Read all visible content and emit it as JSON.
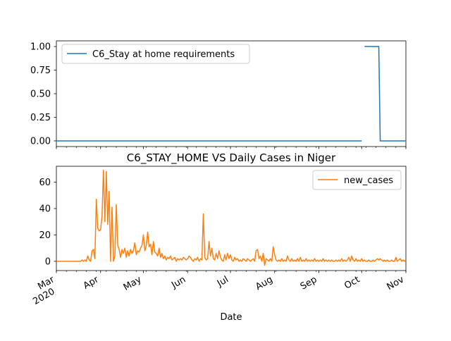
{
  "chart_data": [
    {
      "type": "line",
      "title": "",
      "xlabel": "",
      "ylabel": "",
      "x_range": [
        "2020-03-01",
        "2020-11-01"
      ],
      "ylim": [
        -0.06,
        1.06
      ],
      "yticks": [
        0.0,
        0.25,
        0.5,
        0.75,
        1.0
      ],
      "ytick_labels": [
        "0.00",
        "0.25",
        "0.50",
        "0.75",
        "1.00"
      ],
      "grid": false,
      "legend": "top-left",
      "series": [
        {
          "name": "C6_Stay at home requirements",
          "color": "#1f77b4",
          "segments": [
            [
              [
                "2020-03-01",
                0
              ],
              [
                "2020-10-01",
                0
              ]
            ],
            [
              [
                "2020-10-03",
                1
              ],
              [
                "2020-10-13",
                1
              ],
              [
                "2020-10-14",
                0
              ],
              [
                "2020-11-01",
                0
              ]
            ]
          ]
        }
      ]
    },
    {
      "type": "line",
      "title": "C6_STAY_HOME VS Daily Cases in Niger",
      "xlabel": "Date",
      "ylabel": "",
      "x_range": [
        "2020-03-01",
        "2020-11-01"
      ],
      "ylim": [
        -7,
        72
      ],
      "yticks": [
        0,
        20,
        40,
        60
      ],
      "ytick_labels": [
        "0",
        "20",
        "40",
        "60"
      ],
      "xticks": [
        {
          "date": "2020-03-01",
          "label": "Mar",
          "sublabel": "2020"
        },
        {
          "date": "2020-04-01",
          "label": "Apr"
        },
        {
          "date": "2020-05-01",
          "label": "May"
        },
        {
          "date": "2020-06-01",
          "label": "Jun"
        },
        {
          "date": "2020-07-01",
          "label": "Jul"
        },
        {
          "date": "2020-08-01",
          "label": "Aug"
        },
        {
          "date": "2020-09-01",
          "label": "Sep"
        },
        {
          "date": "2020-10-01",
          "label": "Oct"
        },
        {
          "date": "2020-11-01",
          "label": "Nov"
        }
      ],
      "grid": false,
      "legend": "top-right",
      "series": [
        {
          "name": "new_cases",
          "color": "#ff7f0e",
          "points": [
            [
              "2020-03-01",
              0
            ],
            [
              "2020-03-18",
              0
            ],
            [
              "2020-03-19",
              1
            ],
            [
              "2020-03-20",
              0
            ],
            [
              "2020-03-21",
              1
            ],
            [
              "2020-03-22",
              0
            ],
            [
              "2020-03-23",
              4
            ],
            [
              "2020-03-24",
              1
            ],
            [
              "2020-03-25",
              0
            ],
            [
              "2020-03-26",
              8
            ],
            [
              "2020-03-27",
              9
            ],
            [
              "2020-03-28",
              2
            ],
            [
              "2020-03-29",
              47
            ],
            [
              "2020-03-30",
              25
            ],
            [
              "2020-03-31",
              23
            ],
            [
              "2020-04-01",
              24
            ],
            [
              "2020-04-02",
              34
            ],
            [
              "2020-04-03",
              69
            ],
            [
              "2020-04-04",
              30
            ],
            [
              "2020-04-05",
              68
            ],
            [
              "2020-04-06",
              28
            ],
            [
              "2020-04-07",
              53
            ],
            [
              "2020-04-08",
              0
            ],
            [
              "2020-04-09",
              41
            ],
            [
              "2020-04-10",
              0
            ],
            [
              "2020-04-11",
              4
            ],
            [
              "2020-04-12",
              43
            ],
            [
              "2020-04-13",
              12
            ],
            [
              "2020-04-14",
              9
            ],
            [
              "2020-04-15",
              3
            ],
            [
              "2020-04-16",
              9
            ],
            [
              "2020-04-17",
              6
            ],
            [
              "2020-04-18",
              10
            ],
            [
              "2020-04-19",
              3
            ],
            [
              "2020-04-20",
              8
            ],
            [
              "2020-04-21",
              4
            ],
            [
              "2020-04-22",
              9
            ],
            [
              "2020-04-23",
              6
            ],
            [
              "2020-04-24",
              8
            ],
            [
              "2020-04-25",
              14
            ],
            [
              "2020-04-26",
              5
            ],
            [
              "2020-04-27",
              8
            ],
            [
              "2020-04-28",
              7
            ],
            [
              "2020-04-29",
              10
            ],
            [
              "2020-04-30",
              12
            ],
            [
              "2020-05-01",
              20
            ],
            [
              "2020-05-02",
              8
            ],
            [
              "2020-05-03",
              12
            ],
            [
              "2020-05-04",
              22
            ],
            [
              "2020-05-05",
              11
            ],
            [
              "2020-05-06",
              13
            ],
            [
              "2020-05-07",
              5
            ],
            [
              "2020-05-08",
              15
            ],
            [
              "2020-05-09",
              7
            ],
            [
              "2020-05-10",
              6
            ],
            [
              "2020-05-11",
              4
            ],
            [
              "2020-05-12",
              10
            ],
            [
              "2020-05-13",
              3
            ],
            [
              "2020-05-14",
              6
            ],
            [
              "2020-05-15",
              2
            ],
            [
              "2020-05-16",
              4
            ],
            [
              "2020-05-17",
              1
            ],
            [
              "2020-05-18",
              3
            ],
            [
              "2020-05-19",
              2
            ],
            [
              "2020-05-20",
              4
            ],
            [
              "2020-05-21",
              1
            ],
            [
              "2020-05-22",
              2
            ],
            [
              "2020-05-23",
              3
            ],
            [
              "2020-05-24",
              0
            ],
            [
              "2020-05-25",
              2
            ],
            [
              "2020-05-26",
              1
            ],
            [
              "2020-05-27",
              2
            ],
            [
              "2020-05-28",
              1
            ],
            [
              "2020-05-29",
              3
            ],
            [
              "2020-05-30",
              2
            ],
            [
              "2020-05-31",
              1
            ],
            [
              "2020-06-01",
              2
            ],
            [
              "2020-06-02",
              4
            ],
            [
              "2020-06-03",
              3
            ],
            [
              "2020-06-04",
              1
            ],
            [
              "2020-06-05",
              0
            ],
            [
              "2020-06-06",
              2
            ],
            [
              "2020-06-07",
              1
            ],
            [
              "2020-06-08",
              3
            ],
            [
              "2020-06-09",
              0
            ],
            [
              "2020-06-10",
              2
            ],
            [
              "2020-06-11",
              1
            ],
            [
              "2020-06-12",
              36
            ],
            [
              "2020-06-13",
              3
            ],
            [
              "2020-06-14",
              1
            ],
            [
              "2020-06-15",
              2
            ],
            [
              "2020-06-16",
              15
            ],
            [
              "2020-06-17",
              4
            ],
            [
              "2020-06-18",
              10
            ],
            [
              "2020-06-19",
              2
            ],
            [
              "2020-06-20",
              1
            ],
            [
              "2020-06-21",
              6
            ],
            [
              "2020-06-22",
              2
            ],
            [
              "2020-06-23",
              8
            ],
            [
              "2020-06-24",
              3
            ],
            [
              "2020-06-25",
              1
            ],
            [
              "2020-06-26",
              0
            ],
            [
              "2020-06-27",
              5
            ],
            [
              "2020-06-28",
              1
            ],
            [
              "2020-06-29",
              6
            ],
            [
              "2020-06-30",
              2
            ],
            [
              "2020-07-01",
              5
            ],
            [
              "2020-07-02",
              1
            ],
            [
              "2020-07-03",
              0
            ],
            [
              "2020-07-04",
              3
            ],
            [
              "2020-07-05",
              1
            ],
            [
              "2020-07-06",
              2
            ],
            [
              "2020-07-07",
              0
            ],
            [
              "2020-07-08",
              1
            ],
            [
              "2020-07-09",
              0
            ],
            [
              "2020-07-10",
              2
            ],
            [
              "2020-07-11",
              1
            ],
            [
              "2020-07-12",
              0
            ],
            [
              "2020-07-13",
              2
            ],
            [
              "2020-07-14",
              1
            ],
            [
              "2020-07-15",
              0
            ],
            [
              "2020-07-16",
              1
            ],
            [
              "2020-07-17",
              2
            ],
            [
              "2020-07-18",
              0
            ],
            [
              "2020-07-19",
              8
            ],
            [
              "2020-07-20",
              9
            ],
            [
              "2020-07-21",
              2
            ],
            [
              "2020-07-22",
              4
            ],
            [
              "2020-07-23",
              0
            ],
            [
              "2020-07-24",
              6
            ],
            [
              "2020-07-25",
              -3
            ],
            [
              "2020-07-26",
              2
            ],
            [
              "2020-07-27",
              1
            ],
            [
              "2020-07-28",
              0
            ],
            [
              "2020-07-29",
              2
            ],
            [
              "2020-07-30",
              0
            ],
            [
              "2020-07-31",
              11
            ],
            [
              "2020-08-01",
              5
            ],
            [
              "2020-08-02",
              1
            ],
            [
              "2020-08-03",
              0
            ],
            [
              "2020-08-04",
              1
            ],
            [
              "2020-08-05",
              0
            ],
            [
              "2020-08-06",
              2
            ],
            [
              "2020-08-07",
              0
            ],
            [
              "2020-08-08",
              1
            ],
            [
              "2020-08-09",
              0
            ],
            [
              "2020-08-10",
              4
            ],
            [
              "2020-08-11",
              1
            ],
            [
              "2020-08-12",
              0
            ],
            [
              "2020-08-13",
              2
            ],
            [
              "2020-08-14",
              0
            ],
            [
              "2020-08-15",
              1
            ],
            [
              "2020-08-16",
              0
            ],
            [
              "2020-08-17",
              2
            ],
            [
              "2020-08-18",
              0
            ],
            [
              "2020-08-19",
              3
            ],
            [
              "2020-08-20",
              0
            ],
            [
              "2020-08-21",
              1
            ],
            [
              "2020-08-22",
              0
            ],
            [
              "2020-08-23",
              2
            ],
            [
              "2020-08-24",
              0
            ],
            [
              "2020-08-25",
              1
            ],
            [
              "2020-08-26",
              0
            ],
            [
              "2020-08-27",
              1
            ],
            [
              "2020-08-28",
              0
            ],
            [
              "2020-08-29",
              2
            ],
            [
              "2020-08-30",
              0
            ],
            [
              "2020-08-31",
              1
            ],
            [
              "2020-09-01",
              0
            ],
            [
              "2020-09-02",
              1
            ],
            [
              "2020-09-03",
              0
            ],
            [
              "2020-09-04",
              2
            ],
            [
              "2020-09-05",
              0
            ],
            [
              "2020-09-06",
              1
            ],
            [
              "2020-09-07",
              0
            ],
            [
              "2020-09-08",
              1
            ],
            [
              "2020-09-09",
              0
            ],
            [
              "2020-09-10",
              1
            ],
            [
              "2020-09-11",
              0
            ],
            [
              "2020-09-12",
              0
            ],
            [
              "2020-09-13",
              1
            ],
            [
              "2020-09-14",
              0
            ],
            [
              "2020-09-15",
              1
            ],
            [
              "2020-09-16",
              0
            ],
            [
              "2020-09-17",
              2
            ],
            [
              "2020-09-18",
              0
            ],
            [
              "2020-09-19",
              1
            ],
            [
              "2020-09-20",
              0
            ],
            [
              "2020-09-21",
              1
            ],
            [
              "2020-09-22",
              3
            ],
            [
              "2020-09-23",
              0
            ],
            [
              "2020-09-24",
              4
            ],
            [
              "2020-09-25",
              1
            ],
            [
              "2020-09-26",
              0
            ],
            [
              "2020-09-27",
              2
            ],
            [
              "2020-09-28",
              0
            ],
            [
              "2020-09-29",
              1
            ],
            [
              "2020-09-30",
              0
            ],
            [
              "2020-10-01",
              2
            ],
            [
              "2020-10-02",
              0
            ],
            [
              "2020-10-03",
              1
            ],
            [
              "2020-10-04",
              0
            ],
            [
              "2020-10-05",
              0
            ],
            [
              "2020-10-06",
              1
            ],
            [
              "2020-10-07",
              0
            ],
            [
              "2020-10-08",
              0
            ],
            [
              "2020-10-09",
              1
            ],
            [
              "2020-10-10",
              0
            ],
            [
              "2020-10-11",
              1
            ],
            [
              "2020-10-12",
              2
            ],
            [
              "2020-10-13",
              1
            ],
            [
              "2020-10-14",
              2
            ],
            [
              "2020-10-15",
              1
            ],
            [
              "2020-10-16",
              0
            ],
            [
              "2020-10-17",
              1
            ],
            [
              "2020-10-18",
              0
            ],
            [
              "2020-10-19",
              1
            ],
            [
              "2020-10-20",
              0
            ],
            [
              "2020-10-21",
              0
            ],
            [
              "2020-10-22",
              1
            ],
            [
              "2020-10-23",
              0
            ],
            [
              "2020-10-24",
              0
            ],
            [
              "2020-10-25",
              3
            ],
            [
              "2020-10-26",
              0
            ],
            [
              "2020-10-27",
              1
            ],
            [
              "2020-10-28",
              2
            ],
            [
              "2020-10-29",
              0
            ],
            [
              "2020-10-30",
              1
            ],
            [
              "2020-10-31",
              0
            ],
            [
              "2020-11-01",
              1
            ]
          ]
        }
      ]
    }
  ]
}
